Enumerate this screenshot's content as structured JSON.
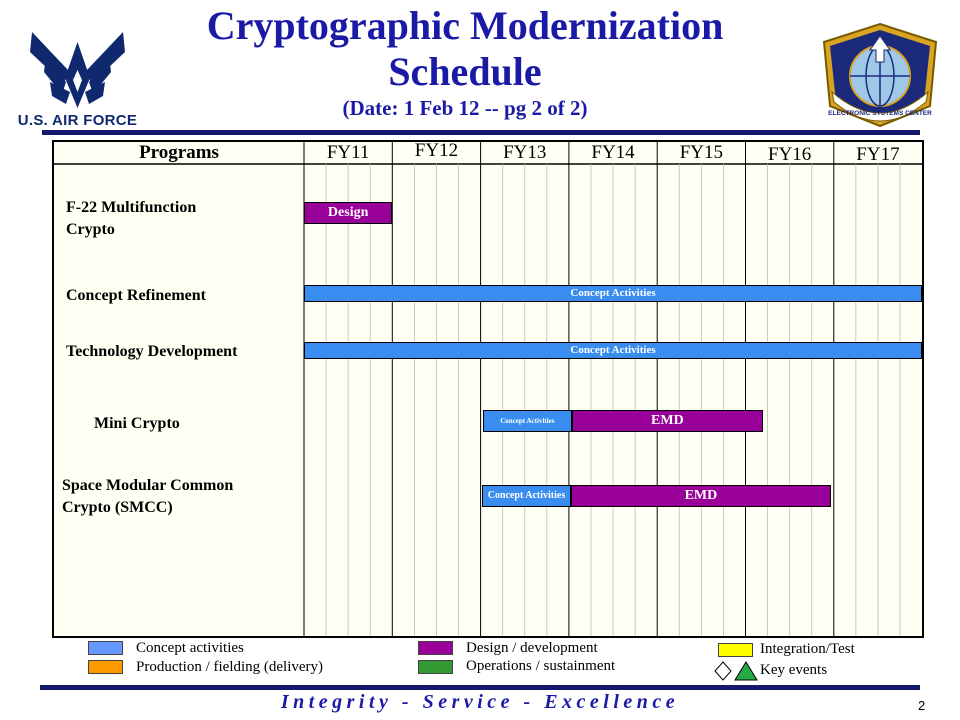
{
  "header": {
    "title_line1": "Cryptographic Modernization",
    "title_line2": "Schedule",
    "subtitle": "(Date: 1 Feb 12 -- pg 2 of 2)",
    "left_logo_text": "U.S. AIR FORCE",
    "right_logo_text": "ELECTRONIC SYSTEMS CENTER"
  },
  "chart_data": {
    "type": "table",
    "programs_header": "Programs",
    "fiscal_years": [
      "FY11",
      "FY12",
      "FY13",
      "FY14",
      "FY15",
      "FY16",
      "FY17"
    ],
    "rows": [
      {
        "label": "F-22 Multifunction Crypto",
        "label_lines": [
          "F-22 Multifunction",
          "Crypto"
        ],
        "bars": [
          {
            "label": "Design",
            "start": 0.0,
            "end": 1.0,
            "type": "design"
          }
        ]
      },
      {
        "label": "Concept Refinement",
        "label_lines": [
          "Concept Refinement"
        ],
        "bars": [
          {
            "label": "Concept Activities",
            "start": 0.0,
            "end": 7.0,
            "type": "concept"
          }
        ]
      },
      {
        "label": "Technology Development",
        "label_lines": [
          "Technology Development"
        ],
        "bars": [
          {
            "label": "Concept Activities",
            "start": 0.0,
            "end": 7.0,
            "type": "concept"
          }
        ]
      },
      {
        "label": "Mini Crypto",
        "label_lines": [
          "Mini Crypto"
        ],
        "bars": [
          {
            "label": "Concept Activities",
            "start": 2.03,
            "end": 3.03,
            "type": "concept"
          },
          {
            "label": "EMD",
            "start": 3.03,
            "end": 5.2,
            "type": "design"
          }
        ]
      },
      {
        "label": "Space Modular Common Crypto (SMCC)",
        "label_lines": [
          "Space Modular Common",
          "Crypto (SMCC)"
        ],
        "bars": [
          {
            "label": "Concept Activities",
            "start": 2.02,
            "end": 3.02,
            "type": "concept"
          },
          {
            "label": "EMD",
            "start": 3.02,
            "end": 5.97,
            "type": "design"
          }
        ]
      }
    ]
  },
  "legend": {
    "concept": {
      "label": "Concept activities",
      "color": "#6699ff"
    },
    "production": {
      "label": "Production / fielding (delivery)",
      "color": "#ff9900"
    },
    "design": {
      "label": "Design / development",
      "color": "#990099"
    },
    "operations": {
      "label": "Operations / sustainment",
      "color": "#339933"
    },
    "integration": {
      "label": "Integration/Test",
      "color": "#ffff00"
    },
    "key_events": {
      "label": "Key events"
    }
  },
  "colors": {
    "concept_bar": "#3a8df0",
    "design_bar": "#990099",
    "title": "#1a1aa6",
    "rule": "#14196e"
  },
  "footer": {
    "motto": "Integrity - Service - Excellence",
    "page_number": "2"
  }
}
